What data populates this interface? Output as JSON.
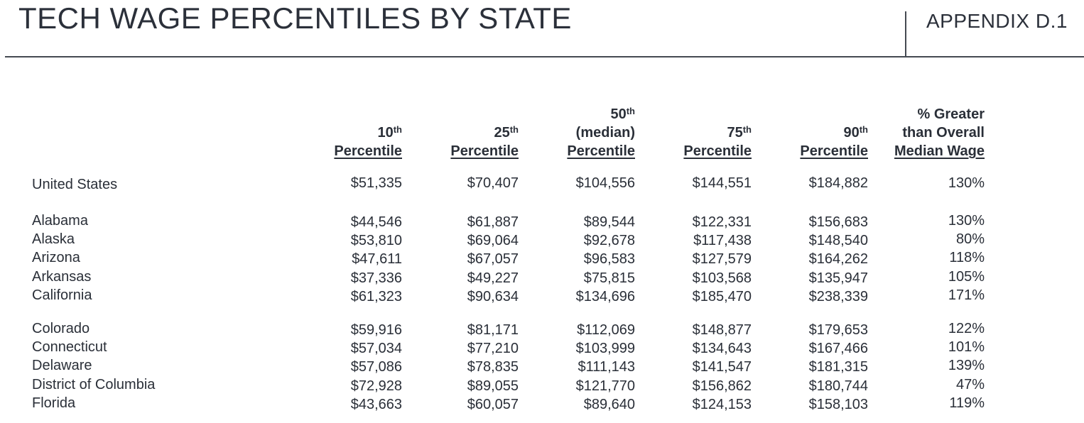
{
  "header": {
    "title": "TECH WAGE PERCENTILES BY STATE",
    "appendix": "APPENDIX D.1"
  },
  "columns": [
    {
      "pre": "",
      "num": "10",
      "suffix": "th",
      "mid": "",
      "label": "Percentile"
    },
    {
      "pre": "",
      "num": "25",
      "suffix": "th",
      "mid": "",
      "label": "Percentile"
    },
    {
      "pre": "",
      "num": "50",
      "suffix": "th",
      "mid": "(median)",
      "label": "Percentile"
    },
    {
      "pre": "",
      "num": "75",
      "suffix": "th",
      "mid": "",
      "label": "Percentile"
    },
    {
      "pre": "",
      "num": "90",
      "suffix": "th",
      "mid": "",
      "label": "Percentile"
    },
    {
      "pre": "% Greater",
      "num": "",
      "suffix": "",
      "mid": "than Overall",
      "label": "Median Wage"
    }
  ],
  "table": {
    "us_row": {
      "label": "United States",
      "values": [
        "$51,335",
        "$70,407",
        "$104,556",
        "$144,551",
        "$184,882",
        "130%"
      ]
    },
    "groups": [
      [
        {
          "label": "Alabama",
          "values": [
            "$44,546",
            "$61,887",
            "$89,544",
            "$122,331",
            "$156,683",
            "130%"
          ]
        },
        {
          "label": "Alaska",
          "values": [
            "$53,810",
            "$69,064",
            "$92,678",
            "$117,438",
            "$148,540",
            "80%"
          ]
        },
        {
          "label": "Arizona",
          "values": [
            "$47,611",
            "$67,057",
            "$96,583",
            "$127,579",
            "$164,262",
            "118%"
          ]
        },
        {
          "label": "Arkansas",
          "values": [
            "$37,336",
            "$49,227",
            "$75,815",
            "$103,568",
            "$135,947",
            "105%"
          ]
        },
        {
          "label": "California",
          "values": [
            "$61,323",
            "$90,634",
            "$134,696",
            "$185,470",
            "$238,339",
            "171%"
          ]
        }
      ],
      [
        {
          "label": "Colorado",
          "values": [
            "$59,916",
            "$81,171",
            "$112,069",
            "$148,877",
            "$179,653",
            "122%"
          ]
        },
        {
          "label": "Connecticut",
          "values": [
            "$57,034",
            "$77,210",
            "$103,999",
            "$134,643",
            "$167,466",
            "101%"
          ]
        },
        {
          "label": "Delaware",
          "values": [
            "$57,086",
            "$78,835",
            "$111,143",
            "$141,547",
            "$181,315",
            "139%"
          ]
        },
        {
          "label": "District of Columbia",
          "values": [
            "$72,928",
            "$89,055",
            "$121,770",
            "$156,862",
            "$180,744",
            "47%"
          ]
        },
        {
          "label": "Florida",
          "values": [
            "$43,663",
            "$60,057",
            "$89,640",
            "$124,153",
            "$158,103",
            "119%"
          ]
        }
      ]
    ]
  }
}
